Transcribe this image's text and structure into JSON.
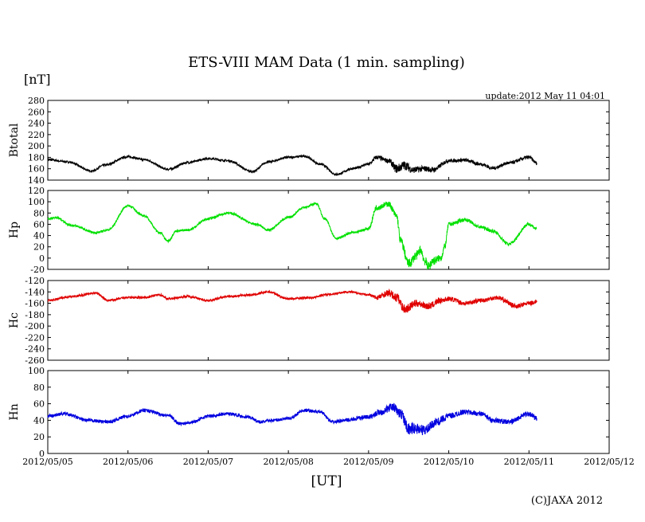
{
  "chart_data": {
    "type": "line",
    "title": "ETS-VIII MAM Data (1 min. sampling)",
    "unit_label": "[nT]",
    "update_label": "update:2012 May 11 04:01",
    "xlabel": "[UT]",
    "copyright": "(C)JAXA 2012",
    "x_ticks": [
      "2012/05/05",
      "2012/05/06",
      "2012/05/07",
      "2012/05/08",
      "2012/05/09",
      "2012/05/10",
      "2012/05/11",
      "2012/05/12"
    ],
    "x_range": [
      "2012/05/05 00:00",
      "2012/05/12 00:00"
    ],
    "grid": false,
    "panels": [
      {
        "name": "Btotal",
        "color": "#000000",
        "ylim": [
          140,
          280
        ],
        "yticks": [
          140,
          160,
          180,
          200,
          220,
          240,
          260,
          280
        ],
        "x_days": [
          0,
          0.25,
          0.55,
          0.7,
          1.0,
          1.2,
          1.5,
          1.75,
          2.0,
          2.25,
          2.55,
          2.75,
          3.0,
          3.2,
          3.4,
          3.6,
          3.8,
          4.0,
          4.1,
          4.25,
          4.35,
          4.45,
          4.55,
          4.7,
          4.8,
          5.0,
          5.2,
          5.4,
          5.55,
          5.75,
          6.0,
          6.1
        ],
        "values": [
          176,
          172,
          156,
          166,
          181,
          176,
          159,
          171,
          178,
          174,
          155,
          172,
          180,
          182,
          168,
          150,
          160,
          168,
          180,
          174,
          160,
          166,
          158,
          160,
          158,
          174,
          175,
          168,
          161,
          170,
          180,
          170
        ],
        "noise": [
          2,
          2,
          2,
          2,
          2,
          2,
          2,
          2,
          2,
          2,
          2,
          2,
          2,
          2,
          2,
          2,
          2,
          2,
          4,
          4,
          8,
          8,
          6,
          5,
          5,
          3,
          3,
          3,
          3,
          3,
          3,
          3
        ]
      },
      {
        "name": "Hp",
        "color": "#00e000",
        "ylim": [
          -20,
          120
        ],
        "yticks": [
          -20,
          0,
          20,
          40,
          60,
          80,
          100,
          120
        ],
        "x_days": [
          0,
          0.1,
          0.3,
          0.6,
          0.75,
          1.0,
          1.2,
          1.4,
          1.5,
          1.6,
          1.75,
          2.0,
          2.25,
          2.6,
          2.75,
          3.0,
          3.2,
          3.35,
          3.45,
          3.6,
          3.8,
          4.0,
          4.1,
          4.25,
          4.35,
          4.4,
          4.5,
          4.6,
          4.65,
          4.7,
          4.75,
          4.8,
          4.9,
          4.95,
          5.0,
          5.2,
          5.4,
          5.55,
          5.75,
          6.0,
          6.1
        ],
        "values": [
          70,
          72,
          58,
          45,
          50,
          93,
          75,
          45,
          30,
          48,
          50,
          70,
          80,
          60,
          50,
          72,
          90,
          97,
          70,
          35,
          45,
          52,
          90,
          96,
          75,
          30,
          -10,
          5,
          15,
          -5,
          -15,
          -5,
          0,
          20,
          60,
          68,
          55,
          48,
          25,
          60,
          52
        ],
        "noise": [
          2,
          2,
          2,
          2,
          2,
          2,
          2,
          2,
          2,
          2,
          2,
          2,
          2,
          2,
          2,
          2,
          2,
          2,
          2,
          2,
          2,
          3,
          5,
          5,
          6,
          8,
          8,
          8,
          8,
          8,
          8,
          8,
          6,
          6,
          4,
          3,
          3,
          3,
          3,
          3,
          3
        ]
      },
      {
        "name": "Hc",
        "color": "#e00000",
        "ylim": [
          -260,
          -120
        ],
        "yticks": [
          -260,
          -240,
          -220,
          -200,
          -180,
          -160,
          -140,
          -120
        ],
        "x_days": [
          0,
          0.3,
          0.6,
          0.75,
          1.0,
          1.2,
          1.4,
          1.5,
          1.75,
          2.0,
          2.25,
          2.55,
          2.75,
          3.0,
          3.3,
          3.45,
          3.75,
          4.0,
          4.1,
          4.25,
          4.35,
          4.45,
          4.6,
          4.75,
          4.9,
          5.0,
          5.2,
          5.4,
          5.6,
          5.85,
          6.0,
          6.1
        ],
        "values": [
          -155,
          -148,
          -142,
          -155,
          -150,
          -150,
          -145,
          -152,
          -148,
          -155,
          -148,
          -145,
          -140,
          -152,
          -150,
          -145,
          -140,
          -145,
          -150,
          -142,
          -150,
          -170,
          -160,
          -165,
          -155,
          -152,
          -160,
          -155,
          -150,
          -165,
          -160,
          -157
        ],
        "noise": [
          2,
          2,
          2,
          2,
          2,
          2,
          2,
          2,
          2,
          2,
          2,
          2,
          2,
          2,
          2,
          2,
          2,
          2,
          4,
          6,
          8,
          8,
          6,
          6,
          5,
          4,
          4,
          4,
          4,
          4,
          4,
          4
        ]
      },
      {
        "name": "Hn",
        "color": "#0000e0",
        "ylim": [
          0,
          100
        ],
        "yticks": [
          0,
          20,
          40,
          60,
          80,
          100
        ],
        "x_days": [
          0,
          0.2,
          0.5,
          0.75,
          1.0,
          1.2,
          1.5,
          1.65,
          1.8,
          2.0,
          2.25,
          2.5,
          2.65,
          2.8,
          3.0,
          3.2,
          3.4,
          3.55,
          3.7,
          4.0,
          4.15,
          4.3,
          4.4,
          4.5,
          4.6,
          4.7,
          4.85,
          5.0,
          5.2,
          5.4,
          5.55,
          5.75,
          6.0,
          6.1
        ],
        "values": [
          45,
          48,
          40,
          38,
          45,
          52,
          46,
          36,
          38,
          45,
          48,
          44,
          38,
          40,
          42,
          52,
          50,
          38,
          40,
          44,
          50,
          56,
          48,
          30,
          30,
          28,
          38,
          45,
          50,
          48,
          40,
          38,
          48,
          42
        ],
        "noise": [
          2,
          2,
          2,
          2,
          2,
          2,
          2,
          2,
          2,
          2,
          2,
          2,
          2,
          2,
          2,
          2,
          2,
          2,
          2,
          3,
          4,
          5,
          6,
          7,
          7,
          6,
          5,
          4,
          3,
          3,
          3,
          3,
          3,
          3
        ]
      }
    ]
  }
}
